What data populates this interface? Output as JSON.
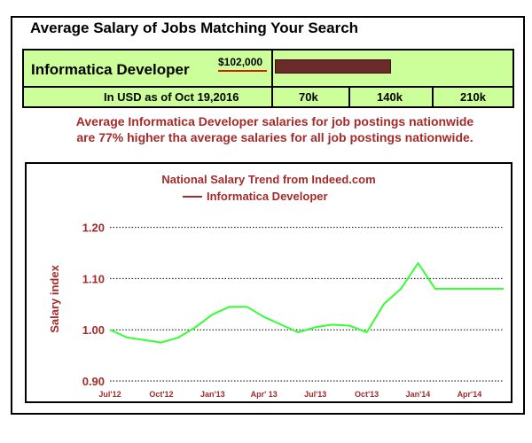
{
  "heading": "Average Salary of Jobs Matching Your Search",
  "salary_table": {
    "job_title": "Informatica Developer",
    "salary_text": "$102,000",
    "salary_value": 102000,
    "usd_label": "In USD as of Oct 19,2016",
    "ticks": [
      "70k",
      "140k",
      "210k"
    ],
    "scale_max": 210000,
    "colors": {
      "background": "#ccff99",
      "bar": "#6b2b2b",
      "underline": "#cc2200"
    }
  },
  "comparison_text": {
    "line1": "Average Informatica Developer salaries for job postings nationwide",
    "line2": "are 77%  higher tha average salaries for all job postings nationwide."
  },
  "chart_data": {
    "type": "line",
    "title": "National Salary Trend from Indeed.com",
    "legend": "Informatica Developer",
    "legend_position": "top-center",
    "ylabel": "Salary index",
    "xlabel": "",
    "ylim": [
      0.9,
      1.22
    ],
    "yticks": [
      "1.20",
      "1.10",
      "1.00",
      "0.90"
    ],
    "ytick_values": [
      1.2,
      1.1,
      1.0,
      0.9
    ],
    "grid": "horizontal dotted",
    "x_tick_labels": [
      "Jul'12",
      "Oct'12",
      "Jan'13",
      "Apr' 13",
      "Jul'13",
      "Oct'13",
      "Jan'14",
      "Apr'14"
    ],
    "x": [
      "2012-07",
      "2012-08",
      "2012-09",
      "2012-10",
      "2012-11",
      "2012-12",
      "2013-01",
      "2013-02",
      "2013-03",
      "2013-04",
      "2013-05",
      "2013-06",
      "2013-07",
      "2013-08",
      "2013-09",
      "2013-10",
      "2013-11",
      "2013-12",
      "2014-01",
      "2014-02",
      "2014-03",
      "2014-04",
      "2014-05",
      "2014-06"
    ],
    "series": [
      {
        "name": "Informatica Developer",
        "color": "#33ff33",
        "values": [
          1.0,
          0.985,
          0.98,
          0.975,
          0.985,
          1.005,
          1.03,
          1.045,
          1.045,
          1.025,
          1.01,
          0.995,
          1.005,
          1.01,
          1.008,
          0.995,
          1.05,
          1.08,
          1.13,
          1.08,
          1.08,
          1.08,
          1.08,
          1.08
        ]
      }
    ],
    "colors": {
      "title": "#a52a2a",
      "axis_labels": "#a52a2a",
      "legend_text": "#a52a2a",
      "legend_line": "#a52a2a"
    }
  }
}
